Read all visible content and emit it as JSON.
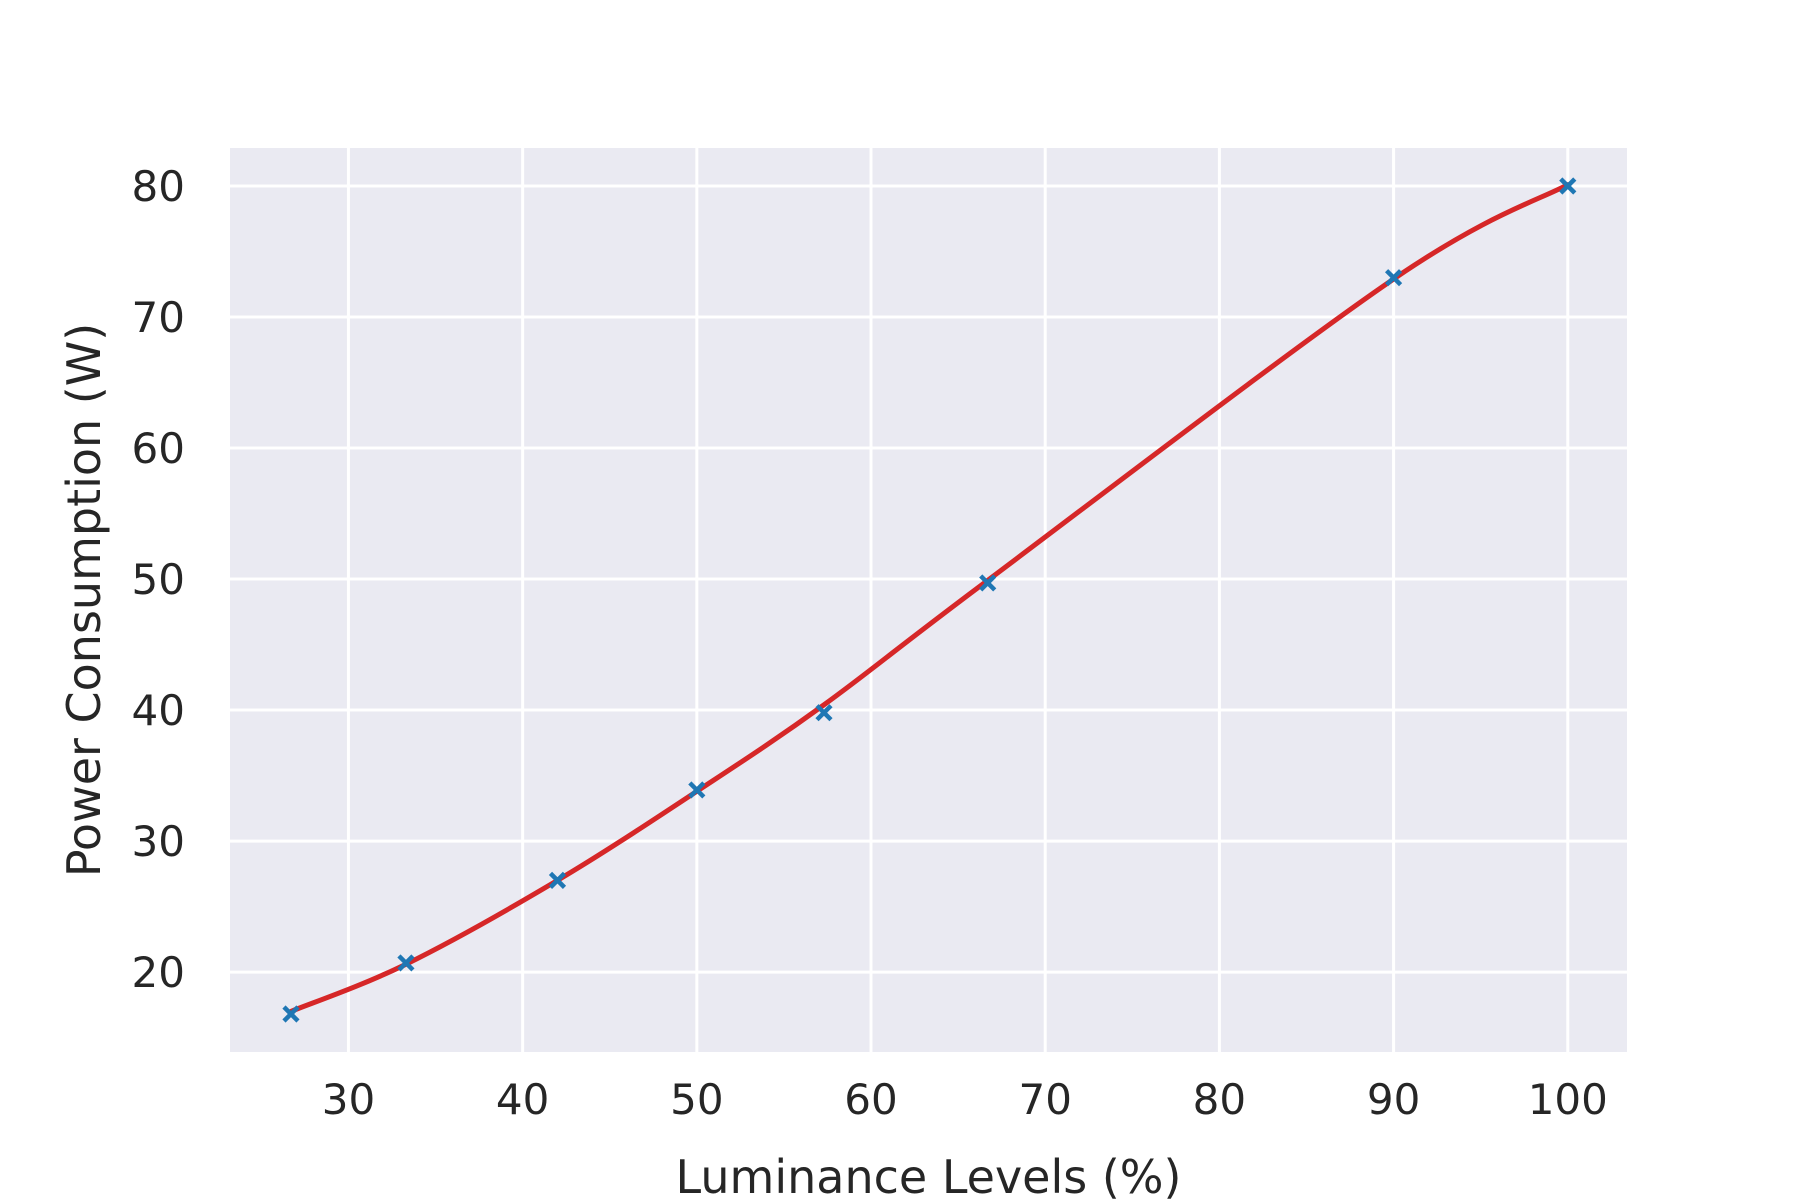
{
  "chart_data": {
    "type": "scatter",
    "title": "",
    "xlabel": "Luminance Levels (%)",
    "ylabel": "Power Consumption (W)",
    "xlim": [
      23.2,
      103.4
    ],
    "ylim": [
      13.9,
      82.9
    ],
    "x_ticks": [
      30,
      40,
      50,
      60,
      70,
      80,
      90,
      100
    ],
    "y_ticks": [
      20,
      30,
      40,
      50,
      60,
      70,
      80
    ],
    "grid": true,
    "legend": "none",
    "series": [
      {
        "type": "scatter",
        "marker": "x",
        "x": [
          26.7,
          33.3,
          42.0,
          50.0,
          57.3,
          66.7,
          90.0,
          100.0
        ],
        "y": [
          16.8,
          20.7,
          27.0,
          33.9,
          39.8,
          49.7,
          73.0,
          80.0
        ],
        "color": "#1f77b4"
      },
      {
        "type": "line",
        "smooth": true,
        "x": [
          26.7,
          33.3,
          42.0,
          50.0,
          57.3,
          66.7,
          90.0,
          100.0
        ],
        "y": [
          17.0,
          20.6,
          27.0,
          33.8,
          40.4,
          49.9,
          72.9,
          80.1
        ],
        "color": "#d62728"
      }
    ]
  },
  "colors": {
    "plot_background": "#eaeaf2",
    "grid": "#ffffff",
    "text": "#262626"
  }
}
